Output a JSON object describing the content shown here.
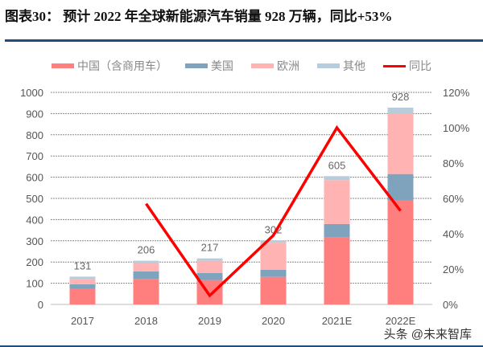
{
  "title": "图表30：  预计 2022 年全球新能源汽车销量 928 万辆，同比+53%",
  "watermark": "头条 @未来智库",
  "chart_data": {
    "type": "bar",
    "stacked": true,
    "title": "",
    "categories": [
      "2017",
      "2018",
      "2019",
      "2020",
      "2021E",
      "2022E"
    ],
    "series": [
      {
        "name": "中国（含商用车）",
        "color": "#ff7f7f",
        "values": [
          74,
          120,
          115,
          130,
          318,
          489
        ]
      },
      {
        "name": "美国",
        "color": "#7fa3bd",
        "values": [
          21,
          36,
          33,
          33,
          61,
          126
        ]
      },
      {
        "name": "欧洲",
        "color": "#ffb3b3",
        "values": [
          25,
          37,
          58,
          128,
          207,
          283
        ]
      },
      {
        "name": "其他",
        "color": "#b8cddb",
        "values": [
          11,
          13,
          11,
          11,
          19,
          30
        ]
      }
    ],
    "totals": [
      131,
      206,
      217,
      302,
      605,
      928
    ],
    "line_series": {
      "name": "同比",
      "color": "#ff0000",
      "axis": "right",
      "values": [
        null,
        57,
        5,
        39,
        100,
        53
      ]
    },
    "ylim": [
      0,
      1000
    ],
    "yticks": [
      0,
      100,
      200,
      300,
      400,
      500,
      600,
      700,
      800,
      900,
      1000
    ],
    "y2lim": [
      0,
      120
    ],
    "y2ticks": [
      "0%",
      "20%",
      "40%",
      "60%",
      "80%",
      "100%",
      "120%"
    ],
    "grid": true,
    "legend": "top"
  }
}
